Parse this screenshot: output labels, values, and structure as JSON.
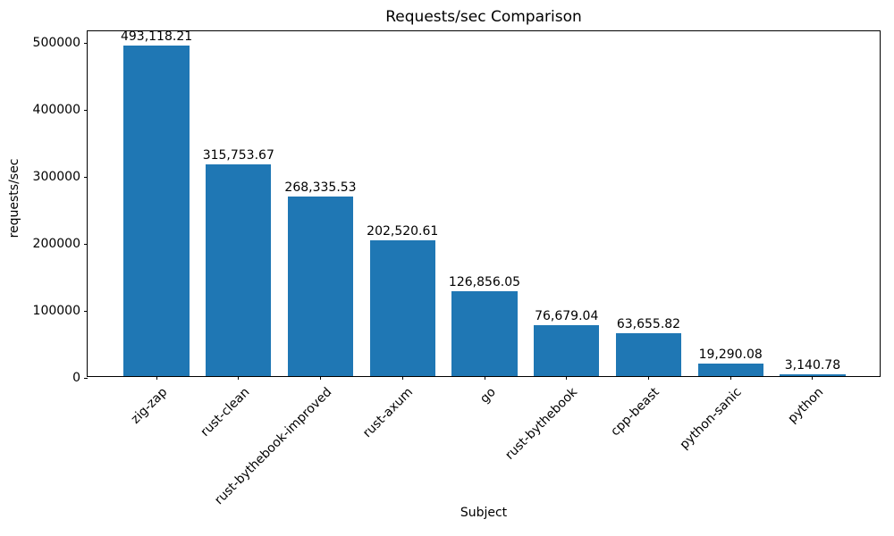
{
  "chart_data": {
    "type": "bar",
    "title": "Requests/sec Comparison",
    "xlabel": "Subject",
    "ylabel": "requests/sec",
    "categories": [
      "zig-zap",
      "rust-clean",
      "rust-bythebook-improved",
      "rust-axum",
      "go",
      "rust-bythebook",
      "cpp-beast",
      "python-sanic",
      "python"
    ],
    "values": [
      493118.21,
      315753.67,
      268335.53,
      202520.61,
      126856.05,
      76679.04,
      63655.82,
      19290.08,
      3140.78
    ],
    "value_labels": [
      "493,118.21",
      "315,753.67",
      "268,335.53",
      "202,520.61",
      "126,856.05",
      "76,679.04",
      "63,655.82",
      "19,290.08",
      "3,140.78"
    ],
    "ytick_values": [
      0,
      100000,
      200000,
      300000,
      400000,
      500000
    ],
    "ytick_labels": [
      "0",
      "100000",
      "200000",
      "300000",
      "400000",
      "500000"
    ],
    "ylim": [
      0,
      517774
    ],
    "xlim": [
      -0.84,
      8.84
    ],
    "bar_width_units": 0.8,
    "bar_color": "#1f77b4",
    "frame_color": "#000000",
    "background_color": "#ffffff",
    "grid": false,
    "legend": null
  }
}
